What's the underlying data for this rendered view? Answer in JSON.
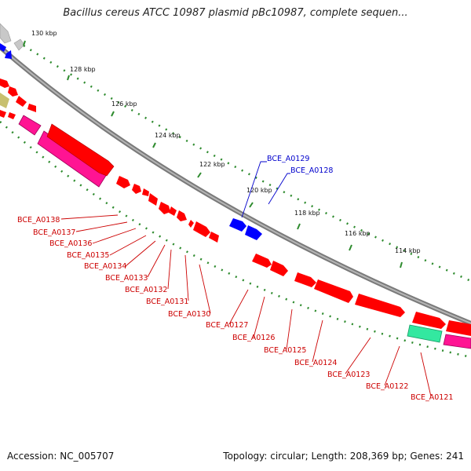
{
  "title": "Bacillus cereus ATCC 10987 plasmid pBc10987, complete sequen...",
  "footer": {
    "accession": "Accession: NC_005707",
    "summary": "Topology: circular; Length: 208,369 bp; Genes: 241"
  },
  "colors": {
    "forward_gene": "#ff0000",
    "reverse_gene": "#0000ff",
    "label_red": "#cc0000",
    "label_blue": "#0000cc",
    "backbone": "#8c8c8c",
    "tick": "#2e8b2e",
    "pink": "#ff1493",
    "teal": "#33e8a0",
    "olive": "#c8c070"
  },
  "kbp_labels": [
    "130 kbp",
    "128 kbp",
    "126 kbp",
    "124 kbp",
    "122 kbp",
    "120 kbp",
    "118 kbp",
    "116 kbp",
    "114 kbp"
  ],
  "blue_labels": [
    "BCE_A0129",
    "BCE_A0128"
  ],
  "red_labels": [
    "BCE_A0138",
    "BCE_A0137",
    "BCE_A0136",
    "BCE_A0135",
    "BCE_A0134",
    "BCE_A0133",
    "BCE_A0132",
    "BCE_A0131",
    "BCE_A0130",
    "BCE_A0127",
    "BCE_A0126",
    "BCE_A0125",
    "BCE_A0124",
    "BCE_A0123",
    "BCE_A0122",
    "BCE_A0121"
  ]
}
